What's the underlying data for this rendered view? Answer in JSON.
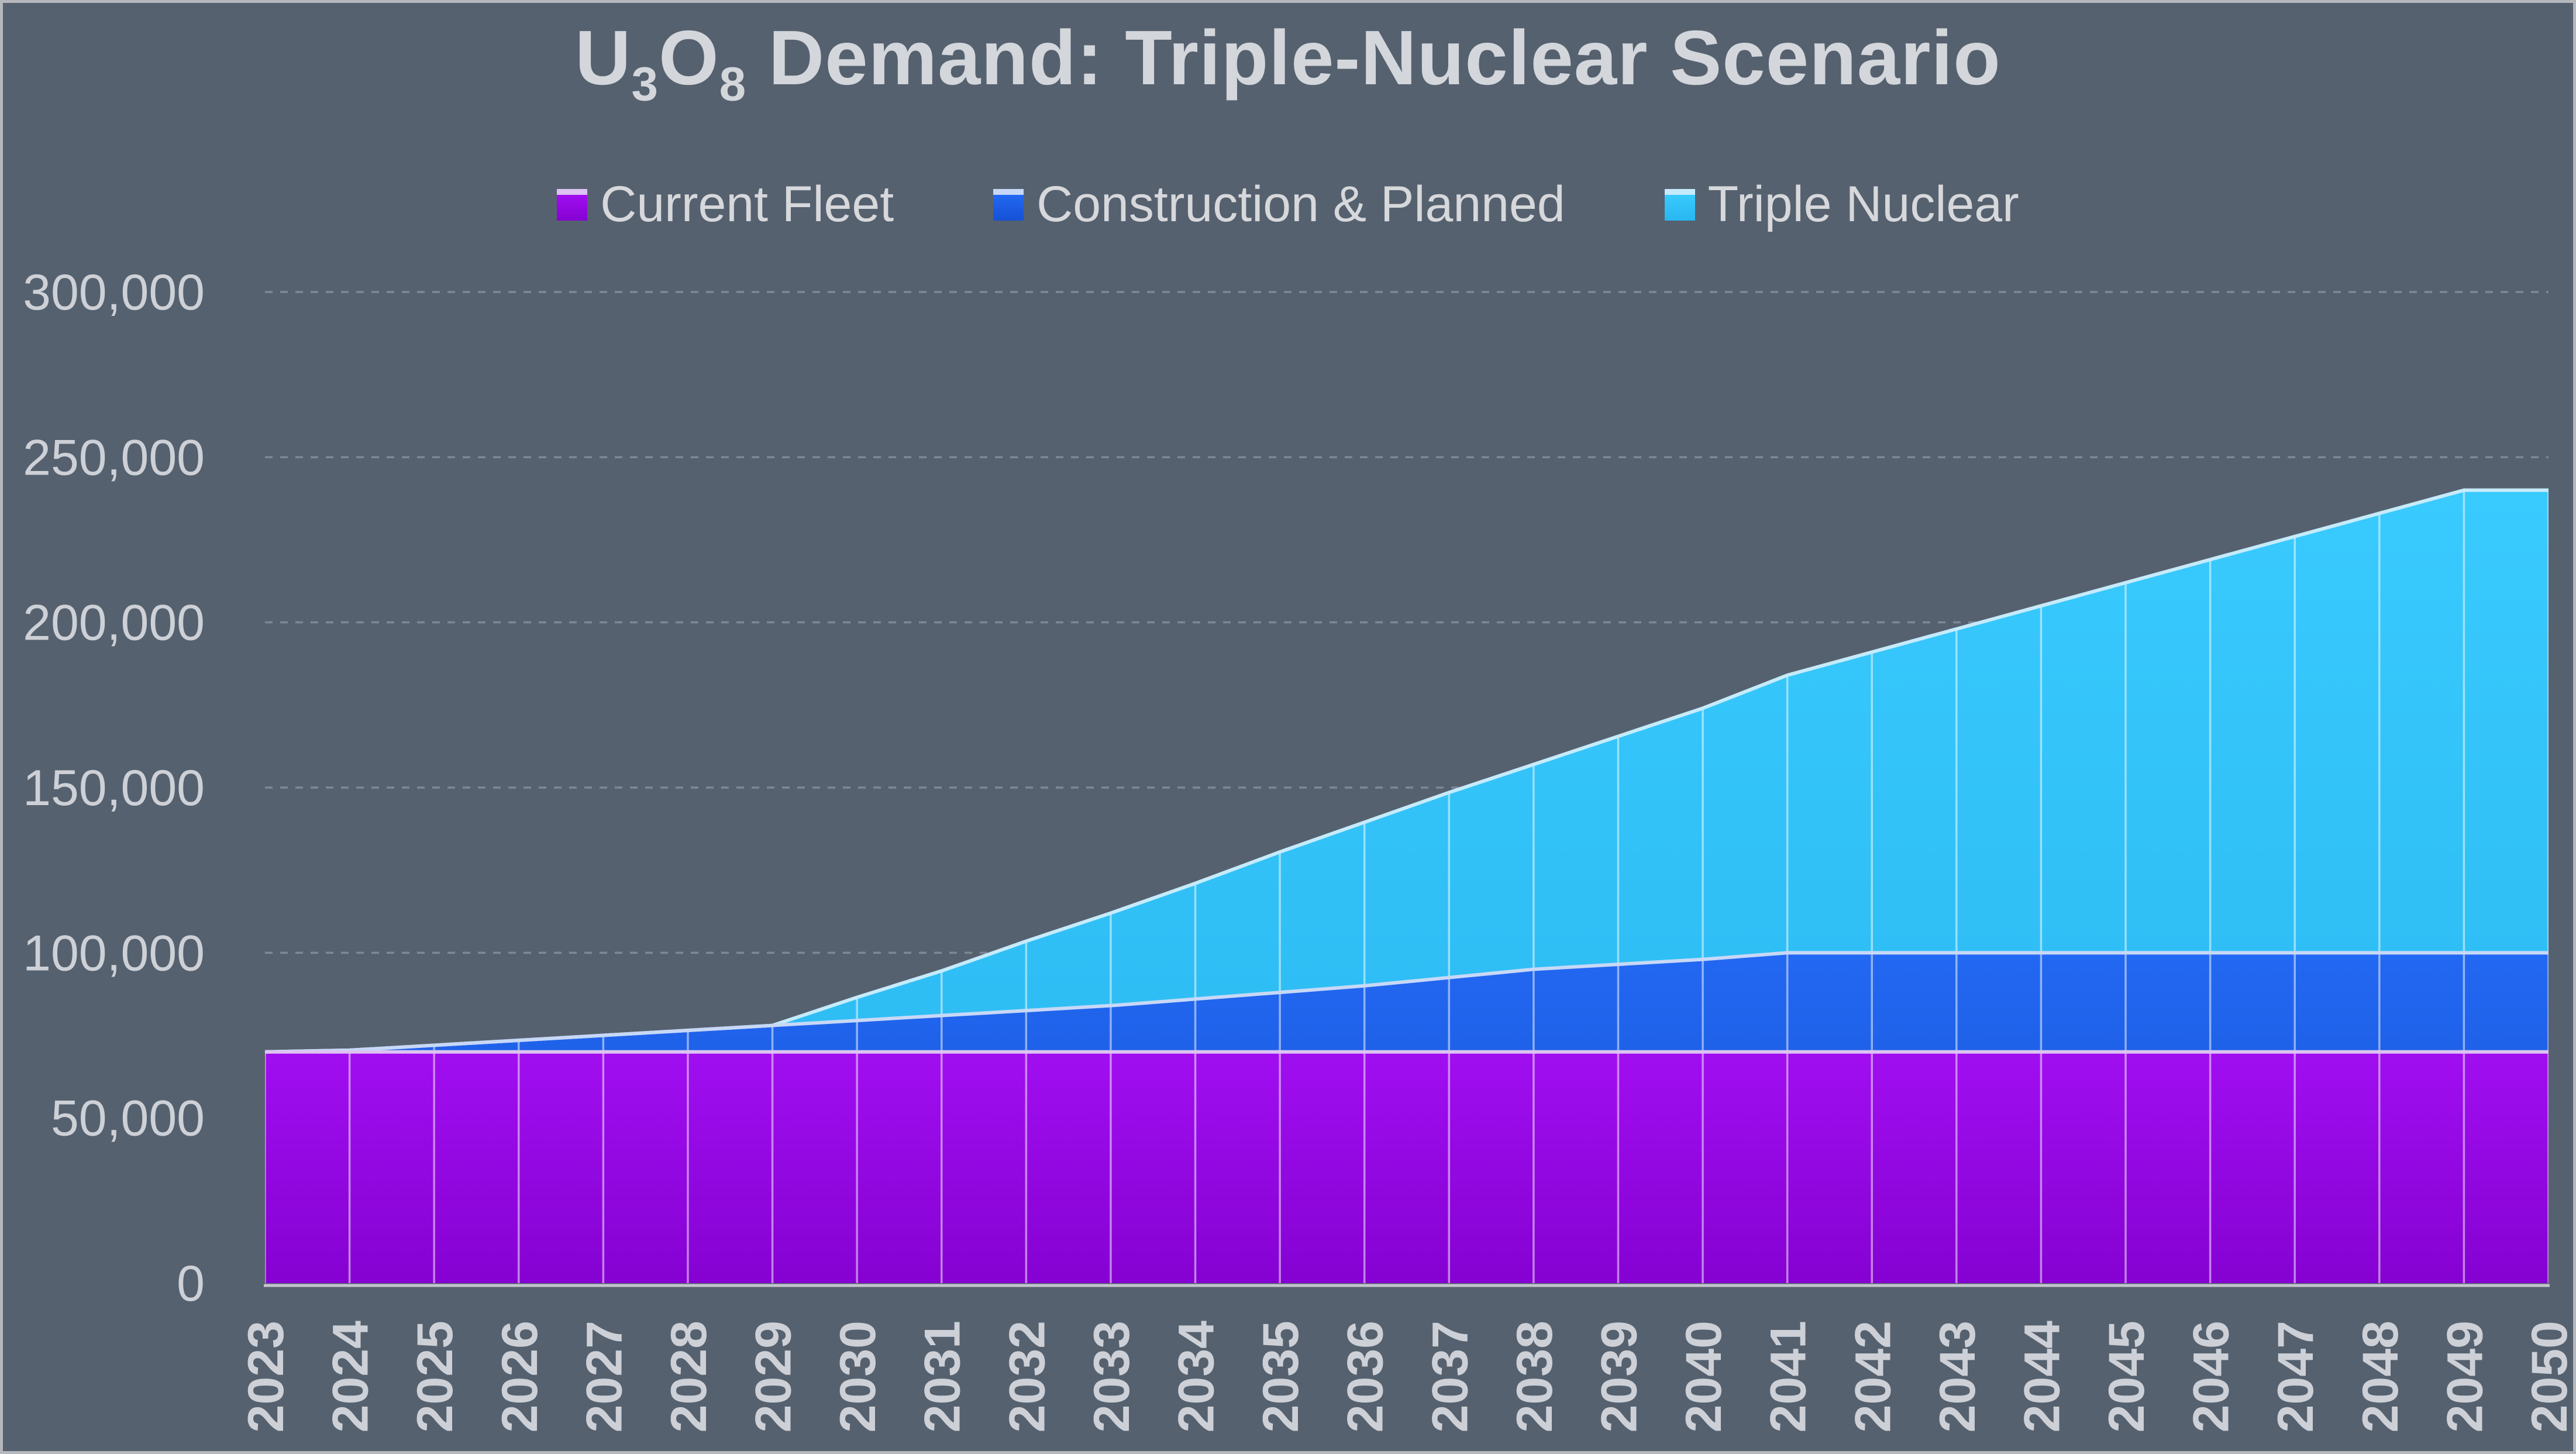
{
  "page": {
    "background": "#56616F",
    "frame_border": "#b5b8bd",
    "text_color": "#D3D6DB",
    "tick_color": "#CDD1D7"
  },
  "title": {
    "u": "U",
    "sub3": "3",
    "o": "O",
    "sub8": "8",
    "rest": " Demand: Triple-Nuclear Scenario"
  },
  "legend": {
    "items": [
      {
        "label": "Current Fleet"
      },
      {
        "label": "Construction & Planned"
      },
      {
        "label": "Triple Nuclear"
      }
    ]
  },
  "chart_data": {
    "type": "area",
    "stacking": "normal",
    "title": "U3O8 Demand: Triple-Nuclear Scenario",
    "legend_position": "top",
    "grid": {
      "horizontal": "dashed",
      "vertical": "solid-white-over-areas"
    },
    "ylim": [
      0,
      300000
    ],
    "xlabel": "",
    "ylabel": "",
    "y_ticks": [
      {
        "value": 0,
        "label": "0"
      },
      {
        "value": 50000,
        "label": "50,000"
      },
      {
        "value": 100000,
        "label": "100,000"
      },
      {
        "value": 150000,
        "label": "150,000"
      },
      {
        "value": 200000,
        "label": "200,000"
      },
      {
        "value": 250000,
        "label": "250,000"
      },
      {
        "value": 300000,
        "label": "300,000"
      }
    ],
    "x": [
      2023,
      2024,
      2025,
      2026,
      2027,
      2028,
      2029,
      2030,
      2031,
      2032,
      2033,
      2034,
      2035,
      2036,
      2037,
      2038,
      2039,
      2040,
      2041,
      2042,
      2043,
      2044,
      2045,
      2046,
      2047,
      2048,
      2049,
      2050
    ],
    "series": [
      {
        "name": "Current Fleet",
        "color_top": "#A00EF0",
        "color_bottom": "#8502D2",
        "stroke": "#DCC3F2",
        "values": [
          70000,
          70000,
          70000,
          70000,
          70000,
          70000,
          70000,
          70000,
          70000,
          70000,
          70000,
          70000,
          70000,
          70000,
          70000,
          70000,
          70000,
          70000,
          70000,
          70000,
          70000,
          70000,
          70000,
          70000,
          70000,
          70000,
          70000,
          70000
        ]
      },
      {
        "name": "Construction & Planned",
        "color_top": "#2368F2",
        "color_bottom": "#1551D4",
        "stroke": "#C7D8F7",
        "values": [
          0,
          500,
          2000,
          3500,
          5000,
          6500,
          8000,
          9500,
          11000,
          12500,
          14000,
          16000,
          18000,
          20000,
          22500,
          25000,
          26500,
          28000,
          30000,
          30000,
          30000,
          30000,
          30000,
          30000,
          30000,
          30000,
          30000,
          30000
        ]
      },
      {
        "name": "Triple Nuclear",
        "color_top": "#39CAFE",
        "color_bottom": "#28B7EF",
        "stroke": "#C5EBFB",
        "values": [
          0,
          0,
          0,
          0,
          0,
          0,
          0,
          7000,
          13500,
          21000,
          28000,
          35000,
          42500,
          49500,
          56000,
          62000,
          69000,
          76000,
          84000,
          91000,
          98000,
          105000,
          112000,
          119000,
          126000,
          133000,
          140000,
          140000
        ]
      }
    ]
  }
}
